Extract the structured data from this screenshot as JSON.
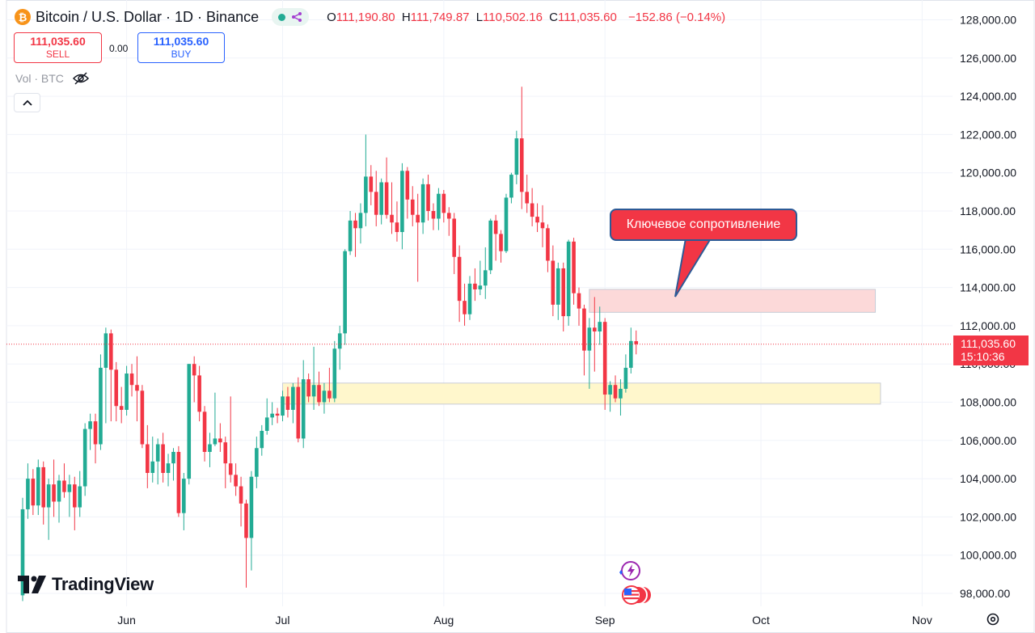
{
  "header": {
    "symbol_icon": "bitcoin-icon",
    "title": "Bitcoin / U.S. Dollar · 1D · Binance",
    "status_icons": [
      "market-open-dot",
      "replay-icon"
    ],
    "ohlc": {
      "o_label": "O",
      "o": "111,190.80",
      "h_label": "H",
      "h": "111,749.87",
      "l_label": "L",
      "l": "110,502.16",
      "c_label": "C",
      "c": "111,035.60",
      "change": "−152.86 (−0.14%)"
    }
  },
  "trade_panel": {
    "sell_price": "111,035.60",
    "sell_label": "SELL",
    "spread": "0.00",
    "buy_price": "111,035.60",
    "buy_label": "BUY"
  },
  "volume": {
    "label": "Vol · BTC",
    "icon": "eye-off-icon"
  },
  "collapse_icon": "chevron-up-icon",
  "logo": {
    "text": "TradingView"
  },
  "annotation": {
    "text": "Ключевое сопротивление"
  },
  "current_price": {
    "price": "111,035.60",
    "countdown": "15:10:36"
  },
  "colors": {
    "up": "#22ab94",
    "down": "#f23645",
    "resistance_zone": "#fcd9d9",
    "support_zone": "#fff7cc",
    "accent": "#2962ff"
  },
  "chart_data": {
    "type": "candlestick",
    "y_axis": {
      "range": [
        97500,
        128500
      ],
      "ticks": [
        98000,
        100000,
        102000,
        104000,
        106000,
        108000,
        110000,
        112000,
        114000,
        116000,
        118000,
        120000,
        122000,
        124000,
        126000,
        128000
      ],
      "tick_labels": [
        "98,000.00",
        "100,000.00",
        "102,000.00",
        "104,000.00",
        "106,000.00",
        "108,000.00",
        "110,000.00",
        "112,000.00",
        "114,000.00",
        "116,000.00",
        "118,000.00",
        "120,000.00",
        "122,000.00",
        "124,000.00",
        "126,000.00",
        "128,000.00"
      ]
    },
    "x_axis": {
      "labels": [
        "Jun",
        "Jul",
        "Aug",
        "Sep",
        "Oct",
        "Nov"
      ],
      "label_days": [
        20,
        50,
        81,
        112,
        142,
        173
      ],
      "first_day": "2025-05-12",
      "last_day": "2025-11-22"
    },
    "grid": true,
    "zones": [
      {
        "name": "resistance",
        "from": 112700,
        "to": 113900,
        "start_day": 109,
        "end_day": 164,
        "color": "#fcd9d9"
      },
      {
        "name": "support",
        "from": 107900,
        "to": 109000,
        "start_day": 50,
        "end_day": 165,
        "color": "#fff7cc"
      }
    ],
    "price_line": 111035.6,
    "candles": [
      {
        "o": 97900,
        "h": 103000,
        "l": 97600,
        "c": 102400
      },
      {
        "o": 102400,
        "h": 104800,
        "l": 101900,
        "c": 104000
      },
      {
        "o": 104000,
        "h": 104500,
        "l": 102100,
        "c": 102600
      },
      {
        "o": 102600,
        "h": 105000,
        "l": 102100,
        "c": 104600
      },
      {
        "o": 104600,
        "h": 104900,
        "l": 101600,
        "c": 102500
      },
      {
        "o": 102500,
        "h": 104000,
        "l": 100800,
        "c": 103700
      },
      {
        "o": 103700,
        "h": 105000,
        "l": 102000,
        "c": 102800
      },
      {
        "o": 102800,
        "h": 104200,
        "l": 101700,
        "c": 103900
      },
      {
        "o": 103900,
        "h": 104800,
        "l": 103000,
        "c": 103300
      },
      {
        "o": 103300,
        "h": 104200,
        "l": 102000,
        "c": 103700
      },
      {
        "o": 103700,
        "h": 104100,
        "l": 101300,
        "c": 102500
      },
      {
        "o": 102500,
        "h": 104400,
        "l": 102000,
        "c": 103600
      },
      {
        "o": 103600,
        "h": 106900,
        "l": 103100,
        "c": 106600
      },
      {
        "o": 106600,
        "h": 107400,
        "l": 105500,
        "c": 107000
      },
      {
        "o": 107000,
        "h": 107400,
        "l": 104800,
        "c": 105800
      },
      {
        "o": 105800,
        "h": 110500,
        "l": 105500,
        "c": 109800
      },
      {
        "o": 109800,
        "h": 111900,
        "l": 106900,
        "c": 111600
      },
      {
        "o": 111600,
        "h": 111800,
        "l": 107000,
        "c": 109700
      },
      {
        "o": 109700,
        "h": 110100,
        "l": 107000,
        "c": 107800
      },
      {
        "o": 107800,
        "h": 108800,
        "l": 106900,
        "c": 107600
      },
      {
        "o": 107600,
        "h": 109900,
        "l": 107300,
        "c": 109500
      },
      {
        "o": 109500,
        "h": 110000,
        "l": 108300,
        "c": 108900
      },
      {
        "o": 108900,
        "h": 110400,
        "l": 107000,
        "c": 108600
      },
      {
        "o": 108600,
        "h": 108900,
        "l": 105600,
        "c": 105800
      },
      {
        "o": 105800,
        "h": 106800,
        "l": 103500,
        "c": 104300
      },
      {
        "o": 104300,
        "h": 106200,
        "l": 103800,
        "c": 104900
      },
      {
        "o": 104900,
        "h": 106100,
        "l": 103700,
        "c": 105800
      },
      {
        "o": 105800,
        "h": 106400,
        "l": 103800,
        "c": 104300
      },
      {
        "o": 104300,
        "h": 105300,
        "l": 103600,
        "c": 104800
      },
      {
        "o": 104800,
        "h": 105600,
        "l": 103900,
        "c": 105400
      },
      {
        "o": 105400,
        "h": 105700,
        "l": 102000,
        "c": 102200
      },
      {
        "o": 102200,
        "h": 104300,
        "l": 101300,
        "c": 104000
      },
      {
        "o": 104000,
        "h": 110000,
        "l": 103700,
        "c": 110000
      },
      {
        "o": 110000,
        "h": 110400,
        "l": 108000,
        "c": 109400
      },
      {
        "o": 109400,
        "h": 109900,
        "l": 107000,
        "c": 107500
      },
      {
        "o": 107500,
        "h": 107800,
        "l": 104900,
        "c": 105400
      },
      {
        "o": 105400,
        "h": 106400,
        "l": 104600,
        "c": 105800
      },
      {
        "o": 105800,
        "h": 108500,
        "l": 105700,
        "c": 106100
      },
      {
        "o": 106100,
        "h": 106900,
        "l": 105400,
        "c": 105900
      },
      {
        "o": 105900,
        "h": 106200,
        "l": 103500,
        "c": 104800
      },
      {
        "o": 104800,
        "h": 108300,
        "l": 103800,
        "c": 104200
      },
      {
        "o": 104200,
        "h": 104800,
        "l": 103100,
        "c": 103600
      },
      {
        "o": 103600,
        "h": 104100,
        "l": 101500,
        "c": 102700
      },
      {
        "o": 102700,
        "h": 102900,
        "l": 98300,
        "c": 100900
      },
      {
        "o": 100900,
        "h": 104400,
        "l": 99200,
        "c": 104100
      },
      {
        "o": 104100,
        "h": 106200,
        "l": 103500,
        "c": 105600
      },
      {
        "o": 105600,
        "h": 106800,
        "l": 105200,
        "c": 106500
      },
      {
        "o": 106500,
        "h": 108200,
        "l": 106300,
        "c": 107200
      },
      {
        "o": 107200,
        "h": 108000,
        "l": 106800,
        "c": 107400
      },
      {
        "o": 107400,
        "h": 107700,
        "l": 106900,
        "c": 107300
      },
      {
        "o": 107300,
        "h": 108600,
        "l": 107000,
        "c": 108300
      },
      {
        "o": 108300,
        "h": 108800,
        "l": 107200,
        "c": 107600
      },
      {
        "o": 107600,
        "h": 109000,
        "l": 106900,
        "c": 108800
      },
      {
        "o": 108800,
        "h": 109300,
        "l": 105900,
        "c": 106100
      },
      {
        "o": 106100,
        "h": 110200,
        "l": 105600,
        "c": 109200
      },
      {
        "o": 109200,
        "h": 109500,
        "l": 108000,
        "c": 108300
      },
      {
        "o": 108300,
        "h": 110900,
        "l": 107600,
        "c": 108900
      },
      {
        "o": 108900,
        "h": 109600,
        "l": 107800,
        "c": 108000
      },
      {
        "o": 108000,
        "h": 109000,
        "l": 107400,
        "c": 108600
      },
      {
        "o": 108600,
        "h": 109800,
        "l": 108000,
        "c": 108200
      },
      {
        "o": 108200,
        "h": 111200,
        "l": 108000,
        "c": 110800
      },
      {
        "o": 110800,
        "h": 112000,
        "l": 109700,
        "c": 111600
      },
      {
        "o": 111600,
        "h": 116000,
        "l": 111000,
        "c": 115900
      },
      {
        "o": 115900,
        "h": 118000,
        "l": 115700,
        "c": 117500
      },
      {
        "o": 117500,
        "h": 117900,
        "l": 115600,
        "c": 117100
      },
      {
        "o": 117100,
        "h": 118400,
        "l": 116300,
        "c": 117900
      },
      {
        "o": 117900,
        "h": 122000,
        "l": 117200,
        "c": 119800
      },
      {
        "o": 119800,
        "h": 120400,
        "l": 118300,
        "c": 119000
      },
      {
        "o": 119000,
        "h": 120100,
        "l": 117200,
        "c": 117800
      },
      {
        "o": 117800,
        "h": 119700,
        "l": 117300,
        "c": 119500
      },
      {
        "o": 119500,
        "h": 120800,
        "l": 117600,
        "c": 117800
      },
      {
        "o": 117800,
        "h": 119500,
        "l": 116800,
        "c": 117400
      },
      {
        "o": 117400,
        "h": 118500,
        "l": 116400,
        "c": 116900
      },
      {
        "o": 116900,
        "h": 120500,
        "l": 116000,
        "c": 120100
      },
      {
        "o": 120100,
        "h": 120300,
        "l": 117600,
        "c": 118600
      },
      {
        "o": 118600,
        "h": 119300,
        "l": 117200,
        "c": 117800
      },
      {
        "o": 117800,
        "h": 118900,
        "l": 114300,
        "c": 117400
      },
      {
        "o": 117400,
        "h": 119700,
        "l": 116800,
        "c": 119400
      },
      {
        "o": 119400,
        "h": 119900,
        "l": 117500,
        "c": 118000
      },
      {
        "o": 118000,
        "h": 118400,
        "l": 117000,
        "c": 117600
      },
      {
        "o": 117600,
        "h": 119200,
        "l": 117000,
        "c": 118900
      },
      {
        "o": 118900,
        "h": 119100,
        "l": 117400,
        "c": 117900
      },
      {
        "o": 117900,
        "h": 118200,
        "l": 116700,
        "c": 117600
      },
      {
        "o": 117600,
        "h": 117900,
        "l": 114700,
        "c": 115600
      },
      {
        "o": 115600,
        "h": 116200,
        "l": 112200,
        "c": 113300
      },
      {
        "o": 113300,
        "h": 114200,
        "l": 112000,
        "c": 112600
      },
      {
        "o": 112600,
        "h": 114600,
        "l": 112300,
        "c": 114200
      },
      {
        "o": 114200,
        "h": 115000,
        "l": 113300,
        "c": 113900
      },
      {
        "o": 113900,
        "h": 115400,
        "l": 113600,
        "c": 114100
      },
      {
        "o": 114100,
        "h": 116100,
        "l": 113400,
        "c": 114900
      },
      {
        "o": 114900,
        "h": 117600,
        "l": 114700,
        "c": 117500
      },
      {
        "o": 117500,
        "h": 117800,
        "l": 115400,
        "c": 116800
      },
      {
        "o": 116800,
        "h": 117000,
        "l": 115300,
        "c": 115900
      },
      {
        "o": 115900,
        "h": 118900,
        "l": 115800,
        "c": 118700
      },
      {
        "o": 118700,
        "h": 120000,
        "l": 118400,
        "c": 119900
      },
      {
        "o": 119900,
        "h": 122200,
        "l": 119400,
        "c": 121800
      },
      {
        "o": 121800,
        "h": 124500,
        "l": 118100,
        "c": 119000
      },
      {
        "o": 119000,
        "h": 119900,
        "l": 117900,
        "c": 118400
      },
      {
        "o": 118400,
        "h": 119200,
        "l": 117200,
        "c": 117700
      },
      {
        "o": 117700,
        "h": 118400,
        "l": 116900,
        "c": 117400
      },
      {
        "o": 117400,
        "h": 118300,
        "l": 116100,
        "c": 117100
      },
      {
        "o": 117100,
        "h": 117300,
        "l": 114800,
        "c": 115400
      },
      {
        "o": 115400,
        "h": 116200,
        "l": 112500,
        "c": 113100
      },
      {
        "o": 113100,
        "h": 115300,
        "l": 112300,
        "c": 115000
      },
      {
        "o": 115000,
        "h": 115300,
        "l": 111700,
        "c": 112500
      },
      {
        "o": 112500,
        "h": 116500,
        "l": 112000,
        "c": 116400
      },
      {
        "o": 116400,
        "h": 116600,
        "l": 113100,
        "c": 113700
      },
      {
        "o": 113700,
        "h": 114000,
        "l": 112000,
        "c": 112900
      },
      {
        "o": 112900,
        "h": 113100,
        "l": 109400,
        "c": 110700
      },
      {
        "o": 110700,
        "h": 112400,
        "l": 108700,
        "c": 111900
      },
      {
        "o": 111900,
        "h": 113500,
        "l": 109600,
        "c": 111700
      },
      {
        "o": 111700,
        "h": 113000,
        "l": 111000,
        "c": 112200
      },
      {
        "o": 112200,
        "h": 112400,
        "l": 107600,
        "c": 108400
      },
      {
        "o": 108400,
        "h": 109100,
        "l": 107500,
        "c": 108900
      },
      {
        "o": 108900,
        "h": 109400,
        "l": 108000,
        "c": 108200
      },
      {
        "o": 108200,
        "h": 109200,
        "l": 107300,
        "c": 108700
      },
      {
        "o": 108700,
        "h": 110500,
        "l": 108500,
        "c": 109800
      },
      {
        "o": 109800,
        "h": 111900,
        "l": 109500,
        "c": 111200
      },
      {
        "o": 111190.8,
        "h": 111749.87,
        "l": 110502.16,
        "c": 111035.6
      }
    ]
  }
}
